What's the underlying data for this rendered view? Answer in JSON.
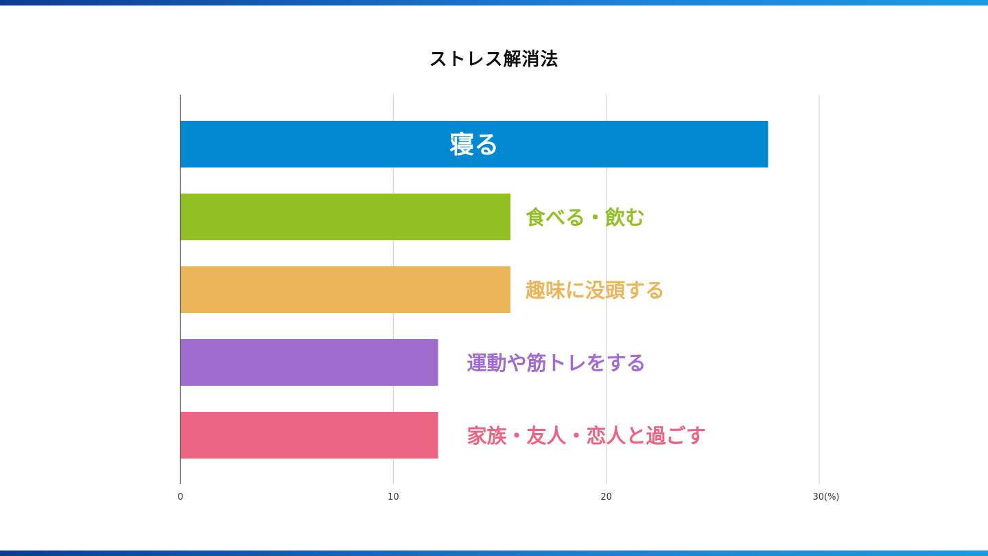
{
  "colors": {
    "band": "#1d6fc9",
    "grid": "#cfcfcf",
    "axis": "#333333"
  },
  "chart_data": {
    "type": "bar",
    "orientation": "horizontal",
    "title": "ストレス解消法",
    "categories": [
      "寝る",
      "食べる・飲む",
      "趣味に没頭する",
      "運動や筋トレをする",
      "家族・友人・恋人と過ごす"
    ],
    "values": [
      27.6,
      15.5,
      15.5,
      12.1,
      12.1
    ],
    "bar_colors": [
      "#0088d1",
      "#92bf23",
      "#ebb55a",
      "#a06dcf",
      "#eb6583"
    ],
    "label_positions": [
      "inside",
      "outside",
      "outside",
      "outside",
      "outside"
    ],
    "xlim": [
      0,
      30
    ],
    "ticks": [
      0,
      10,
      20,
      30
    ],
    "tick_labels": [
      "0",
      "10",
      "20",
      "30(%)"
    ],
    "grid": true,
    "legend": "none"
  }
}
